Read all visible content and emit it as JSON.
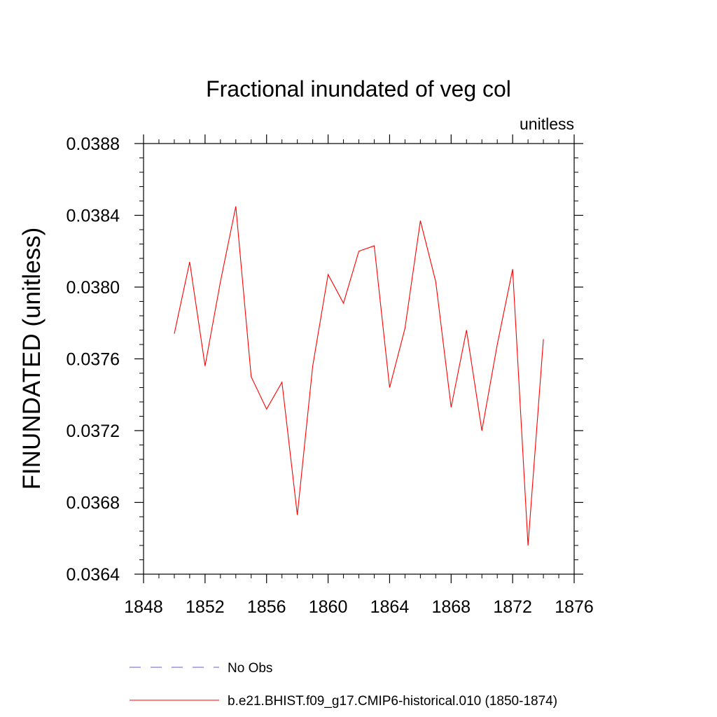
{
  "chart_data": {
    "type": "line",
    "title": "Fractional inundated of veg col",
    "units": "unitless",
    "ylabel": "FINUNDATED  (unitless)",
    "xlabel": "",
    "xlim": [
      1848,
      1876
    ],
    "ylim": [
      0.0364,
      0.0388
    ],
    "x_ticks": [
      "1848",
      "1852",
      "1856",
      "1860",
      "1864",
      "1868",
      "1872",
      "1876"
    ],
    "y_ticks": [
      "0.0364",
      "0.0368",
      "0.0372",
      "0.0376",
      "0.0380",
      "0.0384",
      "0.0388"
    ],
    "x": [
      1850,
      1851,
      1852,
      1853,
      1854,
      1855,
      1856,
      1857,
      1858,
      1859,
      1860,
      1861,
      1862,
      1863,
      1864,
      1865,
      1866,
      1867,
      1868,
      1869,
      1870,
      1871,
      1872,
      1873,
      1874
    ],
    "series": [
      {
        "name": "b.e21.BHIST.f09_g17.CMIP6-historical.010 (1850-1874)",
        "color": "#ff0000",
        "style": "solid",
        "values": [
          0.03774,
          0.03814,
          0.03756,
          0.03803,
          0.03845,
          0.0375,
          0.03732,
          0.03747,
          0.03673,
          0.03756,
          0.03807,
          0.03791,
          0.0382,
          0.03823,
          0.03744,
          0.03777,
          0.03837,
          0.03803,
          0.03733,
          0.03776,
          0.0372,
          0.03768,
          0.0381,
          0.03656,
          0.03771
        ]
      }
    ],
    "legend": [
      {
        "label": "No Obs",
        "color": "#6a5acd",
        "style": "dashed"
      },
      {
        "label": "b.e21.BHIST.f09_g17.CMIP6-historical.010 (1850-1874)",
        "color": "#ff0000",
        "style": "solid"
      }
    ],
    "legend_position": "bottom-center",
    "grid": false
  }
}
